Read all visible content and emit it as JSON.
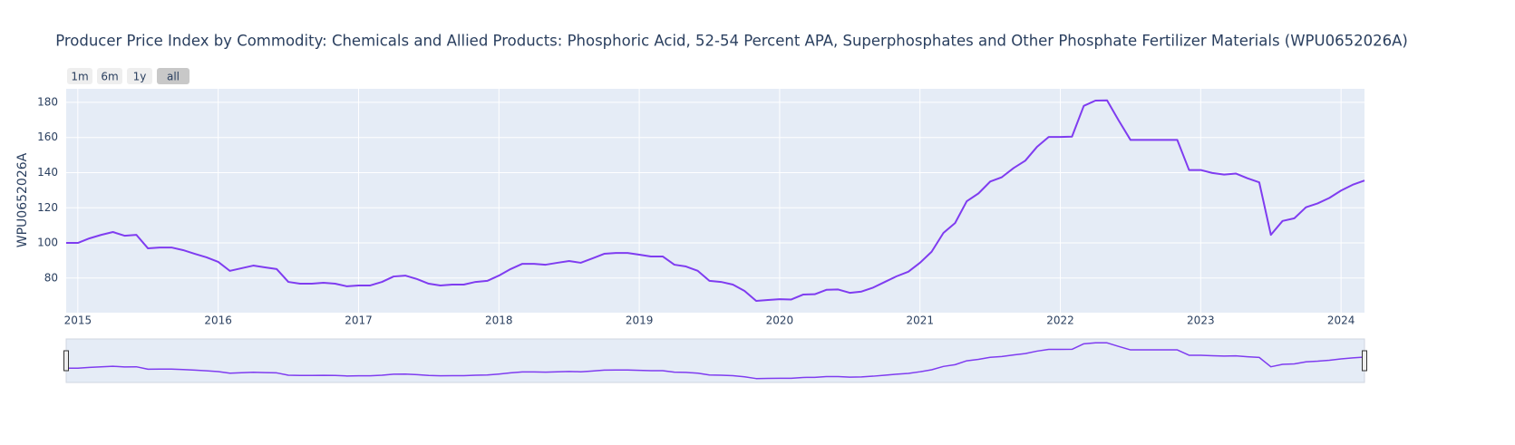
{
  "chart_data": {
    "type": "line",
    "title": "Producer Price Index by Commodity: Chemicals and Allied Products: Phosphoric Acid, 52-54 Percent APA, Superphosphates and Other Phosphate Fertilizer Materials (WPU0652026A)",
    "y_label": "WPU0652026A",
    "range_buttons": [
      "1m",
      "6m",
      "1y",
      "all"
    ],
    "active_button": 3,
    "range_slider": true,
    "grid": true,
    "x": [
      2014.917,
      2015.0,
      2015.083,
      2015.167,
      2015.25,
      2015.333,
      2015.417,
      2015.5,
      2015.583,
      2015.667,
      2015.75,
      2015.833,
      2015.917,
      2016.0,
      2016.083,
      2016.167,
      2016.25,
      2016.333,
      2016.417,
      2016.5,
      2016.583,
      2016.667,
      2016.75,
      2016.833,
      2016.917,
      2017.0,
      2017.083,
      2017.167,
      2017.25,
      2017.333,
      2017.417,
      2017.5,
      2017.583,
      2017.667,
      2017.75,
      2017.833,
      2017.917,
      2018.0,
      2018.083,
      2018.167,
      2018.25,
      2018.333,
      2018.417,
      2018.5,
      2018.583,
      2018.667,
      2018.75,
      2018.833,
      2018.917,
      2019.0,
      2019.083,
      2019.167,
      2019.25,
      2019.333,
      2019.417,
      2019.5,
      2019.583,
      2019.667,
      2019.75,
      2019.833,
      2019.917,
      2020.0,
      2020.083,
      2020.167,
      2020.25,
      2020.333,
      2020.417,
      2020.5,
      2020.583,
      2020.667,
      2020.75,
      2020.833,
      2020.917,
      2021.0,
      2021.083,
      2021.167,
      2021.25,
      2021.333,
      2021.417,
      2021.5,
      2021.583,
      2021.667,
      2021.75,
      2021.833,
      2021.917,
      2022.0,
      2022.083,
      2022.167,
      2022.25,
      2022.333,
      2022.417,
      2022.5,
      2022.583,
      2022.667,
      2022.75,
      2022.833,
      2022.917,
      2023.0,
      2023.083,
      2023.167,
      2023.25,
      2023.333,
      2023.417,
      2023.5,
      2023.583,
      2023.667,
      2023.75,
      2023.833,
      2023.917,
      2024.0,
      2024.083,
      2024.167
    ],
    "series": [
      {
        "name": "WPU0652026A",
        "color": "#7f3cf0",
        "values": [
          100.0,
          100.0,
          102.6,
          104.6,
          106.2,
          104.1,
          104.6,
          96.9,
          97.4,
          97.4,
          95.9,
          93.8,
          91.8,
          89.2,
          84.1,
          85.6,
          87.1,
          86.1,
          85.1,
          77.8,
          76.8,
          76.8,
          77.3,
          76.8,
          75.3,
          75.8,
          75.8,
          77.8,
          80.9,
          81.4,
          79.4,
          76.8,
          75.8,
          76.3,
          76.3,
          77.8,
          78.4,
          81.4,
          85.1,
          88.1,
          88.1,
          87.6,
          88.7,
          89.7,
          88.7,
          91.2,
          93.8,
          94.3,
          94.3,
          93.3,
          92.3,
          92.3,
          87.6,
          86.6,
          84.1,
          78.4,
          77.8,
          76.3,
          72.7,
          67.0,
          67.5,
          68.0,
          67.8,
          70.6,
          70.8,
          73.3,
          73.5,
          71.6,
          72.3,
          74.6,
          77.8,
          81.0,
          83.6,
          88.7,
          95.0,
          105.7,
          111.3,
          123.7,
          128.2,
          134.9,
          137.4,
          142.6,
          146.8,
          154.6,
          160.3,
          160.3,
          160.5,
          178.0,
          181.0,
          181.1,
          169.5,
          158.6,
          158.6,
          158.6,
          158.6,
          158.6,
          141.5,
          141.5,
          139.8,
          138.9,
          139.5,
          136.8,
          134.5,
          104.6,
          112.5,
          114.0,
          120.3,
          122.5,
          125.6,
          129.8,
          133.1,
          135.5
        ]
      }
    ],
    "xlim": [
      2014.917,
      2024.167
    ],
    "xticks": [
      2015,
      2016,
      2017,
      2018,
      2019,
      2020,
      2021,
      2022,
      2023,
      2024
    ],
    "ylim": [
      60.3,
      187.7
    ],
    "yticks": [
      80,
      100,
      120,
      140,
      160,
      180
    ]
  }
}
